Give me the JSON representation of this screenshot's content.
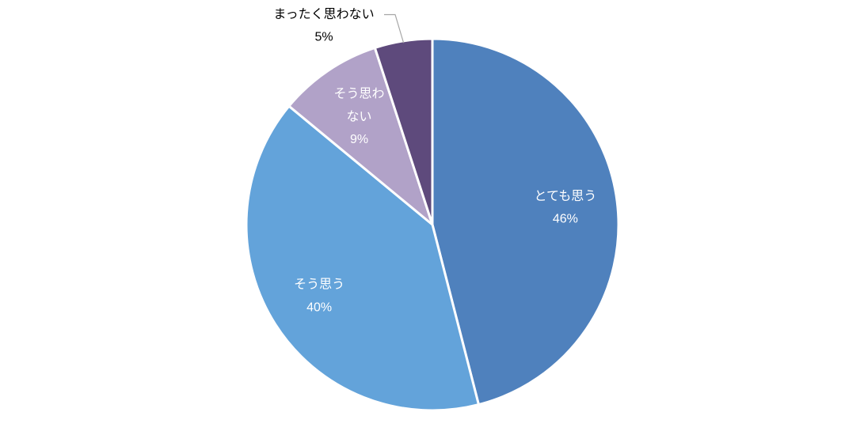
{
  "chart_data": {
    "type": "pie",
    "title": "",
    "start_angle_deg": 0,
    "direction": "clockwise",
    "slices": [
      {
        "name": "とても思う",
        "value": 46,
        "value_label": "46%",
        "color": "#4f81bd",
        "label_color": "#ffffff",
        "label_lines": [
          "とても思う"
        ],
        "label_inside": true
      },
      {
        "name": "そう思う",
        "value": 40,
        "value_label": "40%",
        "color": "#63a3da",
        "label_color": "#ffffff",
        "label_lines": [
          "そう思う"
        ],
        "label_inside": true
      },
      {
        "name": "そう思わない",
        "value": 9,
        "value_label": "9%",
        "color": "#b1a2c8",
        "label_color": "#ffffff",
        "label_lines": [
          "そう思わ",
          "ない"
        ],
        "label_inside": true
      },
      {
        "name": "まったく思わない",
        "value": 5,
        "value_label": "5%",
        "color": "#5e4a7c",
        "label_color": "#000000",
        "label_lines": [
          "まったく思わない"
        ],
        "label_inside": false,
        "leader_line": true
      }
    ],
    "legend": "none",
    "slice_border_color": "#ffffff",
    "leader_line_color": "#a6a6a6"
  }
}
